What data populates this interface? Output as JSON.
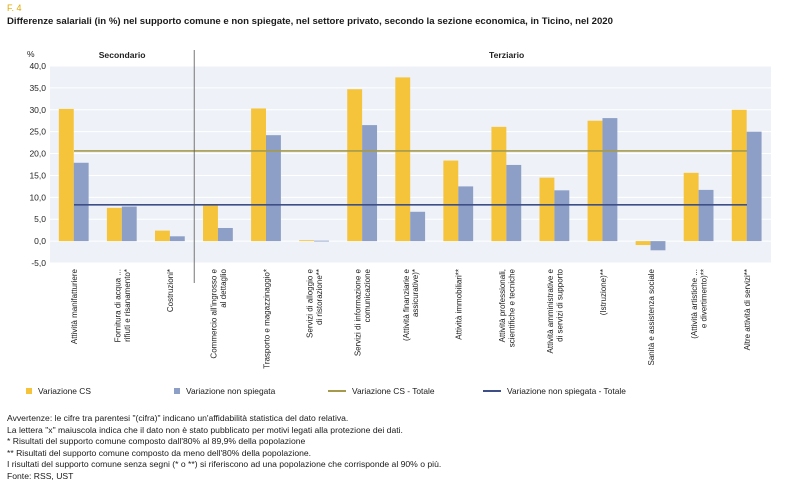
{
  "figure_label": "F. 4",
  "title": "Differenze salariali (in %) nel supporto comune e non spiegate, nel settore privato, secondo la sezione economica, in Ticino, nel 2020",
  "colors": {
    "cs": "#f5c43a",
    "non_spiegata": "#8d9fc7",
    "cs_totale": "#a59a4c",
    "non_spiegata_totale": "#3d4f86",
    "plot_bg": "#eef2f8",
    "grid": "#ffffff"
  },
  "chart_data": {
    "type": "bar",
    "ylabel": "%",
    "ylim": [
      -5,
      40
    ],
    "yticks": [
      "-5,0",
      "0,0",
      "5,0",
      "10,0",
      "15,0",
      "20,0",
      "25,0",
      "30,0",
      "35,0",
      "40,0"
    ],
    "ytick_values": [
      -5,
      0,
      5,
      10,
      15,
      20,
      25,
      30,
      35,
      40
    ],
    "grid": true,
    "groups": [
      {
        "label": "Secondario",
        "from": 0,
        "to": 2
      },
      {
        "label": "Terziario",
        "from": 3,
        "to": 15
      }
    ],
    "categories": [
      "Attività manifatturiere",
      "Fornitura di acqua ... rifiuti e risanamento*",
      "Costruzioni*",
      "Commercio all'ingrosso e al dettaglio",
      "Trasporto e magazzinaggio*",
      "Servizi di alloggio e di ristorazione**",
      "Servizi di informazione e comunicazione",
      "(Attività finanziarie e assicurative)*",
      "Attività immobiliari**",
      "Attività professionali, scientifiche e tecniche",
      "Attività amministrative e di servizi di supporto",
      "(Istruzione)**",
      "Sanità e assistenza sociale",
      "(Attività artistiche ... e divertimento)**",
      "Altre attività di servizi**"
    ],
    "category_lines": [
      [
        "Attività manifatturiere"
      ],
      [
        "Fornitura di acqua ...",
        "rifiuti e risanamento*"
      ],
      [
        "Costruzioni*"
      ],
      [
        "Commercio all'ingrosso e",
        "al dettaglio"
      ],
      [
        "Trasporto e magazzinaggio*"
      ],
      [
        "Servizi di alloggio e",
        "di ristorazione**"
      ],
      [
        "Servizi di informazione e",
        "comunicazione"
      ],
      [
        "(Attività finanziarie e",
        "assicurative)*"
      ],
      [
        "Attività immobiliari**"
      ],
      [
        "Attività professionali,",
        "scientifiche e tecniche"
      ],
      [
        "Attività amministrative e",
        "di servizi di supporto"
      ],
      [
        "(Istruzione)**"
      ],
      [
        "Sanità e assistenza sociale"
      ],
      [
        "(Attività artistiche ...",
        "e divertimento)**"
      ],
      [
        "Altre attività di servizi**"
      ]
    ],
    "series": [
      {
        "name": "Variazione CS",
        "values": [
          30.2,
          7.6,
          2.4,
          8.3,
          30.3,
          0.2,
          34.7,
          37.4,
          18.4,
          26.1,
          14.5,
          27.5,
          -0.9,
          15.6,
          30.0
        ]
      },
      {
        "name": "Variazione non spiegata",
        "values": [
          17.9,
          7.9,
          1.1,
          3.0,
          24.2,
          0.1,
          26.5,
          6.7,
          12.5,
          17.4,
          11.6,
          28.1,
          -2.1,
          11.7,
          25.0
        ]
      }
    ],
    "reference_lines": [
      {
        "name": "Variazione CS - Totale",
        "value": 20.6
      },
      {
        "name": "Variazione non spiegata - Totale",
        "value": 8.3
      }
    ]
  },
  "notes": [
    "Avvertenze: le cifre tra parentesi \"(cifra)\" indicano un'affidabilità statistica del dato relativa.",
    "La lettera \"x\" maiuscola indica che il dato non è stato pubblicato per motivi legati alla protezione dei dati.",
    "*  Risultati del supporto comune composto dall'80% al 89,9% della popolazione",
    "** Risultati del supporto comune composto da meno dell'80% della popolazione.",
    "I risultati del supporto comune senza segni (* o **) si riferiscono ad una popolazione che corrisponde al 90% o più.",
    "Fonte: RSS, UST"
  ]
}
